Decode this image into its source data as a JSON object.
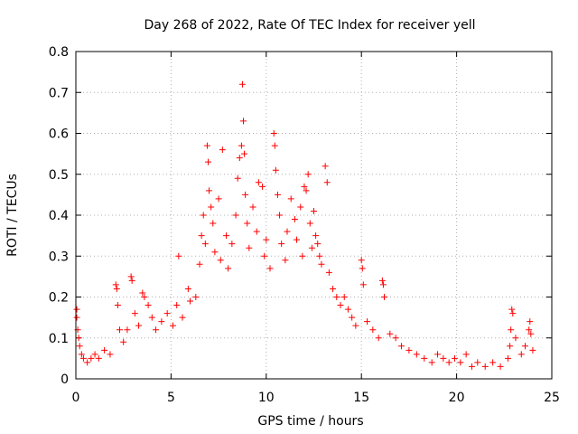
{
  "chart_data": {
    "type": "scatter",
    "title": "Day 268 of 2022, Rate Of TEC Index for receiver yell",
    "xlabel": "GPS time / hours",
    "ylabel": "ROTI / TECUs",
    "xlim": [
      0,
      25
    ],
    "ylim": [
      0,
      0.8
    ],
    "x_ticks": [
      "0",
      "5",
      "10",
      "15",
      "20",
      "25"
    ],
    "y_ticks": [
      "0",
      "0.1",
      "0.2",
      "0.3",
      "0.4",
      "0.5",
      "0.6",
      "0.7",
      "0.8"
    ],
    "grid": true,
    "marker": "+",
    "marker_color": "#ff0000",
    "points": [
      [
        0.05,
        0.17
      ],
      [
        0.05,
        0.15
      ],
      [
        0.1,
        0.12
      ],
      [
        0.15,
        0.1
      ],
      [
        0.2,
        0.08
      ],
      [
        0.3,
        0.06
      ],
      [
        0.4,
        0.05
      ],
      [
        0.6,
        0.04
      ],
      [
        0.8,
        0.05
      ],
      [
        1.0,
        0.06
      ],
      [
        1.2,
        0.05
      ],
      [
        1.5,
        0.07
      ],
      [
        1.8,
        0.06
      ],
      [
        2.1,
        0.23
      ],
      [
        2.15,
        0.22
      ],
      [
        2.2,
        0.18
      ],
      [
        2.3,
        0.12
      ],
      [
        2.5,
        0.09
      ],
      [
        2.7,
        0.12
      ],
      [
        2.9,
        0.25
      ],
      [
        2.95,
        0.24
      ],
      [
        3.1,
        0.16
      ],
      [
        3.3,
        0.13
      ],
      [
        3.5,
        0.21
      ],
      [
        3.6,
        0.2
      ],
      [
        3.8,
        0.18
      ],
      [
        4.0,
        0.15
      ],
      [
        4.2,
        0.12
      ],
      [
        4.5,
        0.14
      ],
      [
        4.8,
        0.16
      ],
      [
        5.1,
        0.13
      ],
      [
        5.3,
        0.18
      ],
      [
        5.4,
        0.3
      ],
      [
        5.6,
        0.15
      ],
      [
        5.9,
        0.22
      ],
      [
        6.0,
        0.19
      ],
      [
        6.3,
        0.2
      ],
      [
        6.5,
        0.28
      ],
      [
        6.6,
        0.35
      ],
      [
        6.7,
        0.4
      ],
      [
        6.8,
        0.33
      ],
      [
        6.9,
        0.57
      ],
      [
        6.95,
        0.53
      ],
      [
        7.0,
        0.46
      ],
      [
        7.1,
        0.42
      ],
      [
        7.2,
        0.38
      ],
      [
        7.3,
        0.31
      ],
      [
        7.5,
        0.44
      ],
      [
        7.6,
        0.29
      ],
      [
        7.7,
        0.56
      ],
      [
        7.9,
        0.35
      ],
      [
        8.0,
        0.27
      ],
      [
        8.2,
        0.33
      ],
      [
        8.4,
        0.4
      ],
      [
        8.5,
        0.49
      ],
      [
        8.6,
        0.54
      ],
      [
        8.7,
        0.57
      ],
      [
        8.75,
        0.72
      ],
      [
        8.8,
        0.63
      ],
      [
        8.85,
        0.55
      ],
      [
        8.9,
        0.45
      ],
      [
        9.0,
        0.38
      ],
      [
        9.1,
        0.32
      ],
      [
        9.3,
        0.42
      ],
      [
        9.5,
        0.36
      ],
      [
        9.6,
        0.48
      ],
      [
        9.8,
        0.47
      ],
      [
        9.9,
        0.3
      ],
      [
        10.0,
        0.34
      ],
      [
        10.2,
        0.27
      ],
      [
        10.4,
        0.6
      ],
      [
        10.45,
        0.57
      ],
      [
        10.5,
        0.51
      ],
      [
        10.6,
        0.45
      ],
      [
        10.7,
        0.4
      ],
      [
        10.8,
        0.33
      ],
      [
        11.0,
        0.29
      ],
      [
        11.1,
        0.36
      ],
      [
        11.3,
        0.44
      ],
      [
        11.5,
        0.39
      ],
      [
        11.6,
        0.34
      ],
      [
        11.8,
        0.42
      ],
      [
        11.9,
        0.3
      ],
      [
        12.0,
        0.47
      ],
      [
        12.1,
        0.46
      ],
      [
        12.2,
        0.5
      ],
      [
        12.3,
        0.38
      ],
      [
        12.4,
        0.32
      ],
      [
        12.5,
        0.41
      ],
      [
        12.6,
        0.35
      ],
      [
        12.7,
        0.33
      ],
      [
        12.8,
        0.3
      ],
      [
        12.9,
        0.28
      ],
      [
        13.1,
        0.52
      ],
      [
        13.2,
        0.48
      ],
      [
        13.3,
        0.26
      ],
      [
        13.5,
        0.22
      ],
      [
        13.7,
        0.2
      ],
      [
        13.9,
        0.18
      ],
      [
        14.1,
        0.2
      ],
      [
        14.3,
        0.17
      ],
      [
        14.5,
        0.15
      ],
      [
        14.7,
        0.13
      ],
      [
        15.0,
        0.29
      ],
      [
        15.05,
        0.27
      ],
      [
        15.1,
        0.23
      ],
      [
        15.3,
        0.14
      ],
      [
        15.6,
        0.12
      ],
      [
        15.9,
        0.1
      ],
      [
        16.1,
        0.24
      ],
      [
        16.15,
        0.23
      ],
      [
        16.2,
        0.2
      ],
      [
        16.5,
        0.11
      ],
      [
        16.8,
        0.1
      ],
      [
        17.1,
        0.08
      ],
      [
        17.5,
        0.07
      ],
      [
        17.9,
        0.06
      ],
      [
        18.3,
        0.05
      ],
      [
        18.7,
        0.04
      ],
      [
        19.0,
        0.06
      ],
      [
        19.3,
        0.05
      ],
      [
        19.6,
        0.04
      ],
      [
        19.9,
        0.05
      ],
      [
        20.2,
        0.04
      ],
      [
        20.5,
        0.06
      ],
      [
        20.8,
        0.03
      ],
      [
        21.1,
        0.04
      ],
      [
        21.5,
        0.03
      ],
      [
        21.9,
        0.04
      ],
      [
        22.3,
        0.03
      ],
      [
        22.7,
        0.05
      ],
      [
        22.8,
        0.08
      ],
      [
        22.85,
        0.12
      ],
      [
        22.9,
        0.17
      ],
      [
        22.95,
        0.16
      ],
      [
        23.1,
        0.1
      ],
      [
        23.4,
        0.06
      ],
      [
        23.6,
        0.08
      ],
      [
        23.8,
        0.12
      ],
      [
        23.85,
        0.14
      ],
      [
        23.9,
        0.11
      ],
      [
        24.0,
        0.07
      ]
    ]
  }
}
